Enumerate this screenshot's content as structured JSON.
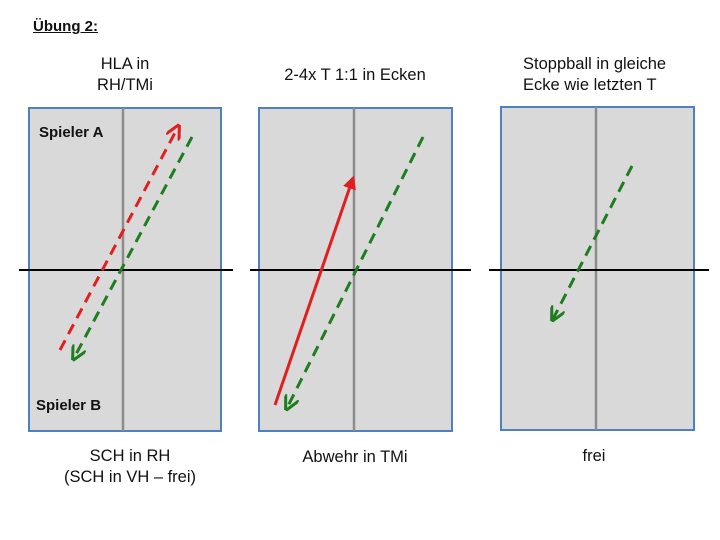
{
  "heading": "Übung 2:",
  "colors": {
    "court_fill": "#d9d9d9",
    "court_border": "#4f81bd",
    "center_line": "#8c8c8c",
    "net": "#000000",
    "player_a_shot": "#e02020",
    "player_b_shot": "#1e7d1e"
  },
  "panels": [
    {
      "title": "HLA in\nRH/TMi",
      "caption": "SCH in RH\n(SCH in VH – frei)",
      "player_a_label": "Spieler A",
      "player_b_label": "Spieler B"
    },
    {
      "title": "2-4x T 1:1 in Ecken",
      "caption": "Abwehr in TMi"
    },
    {
      "title": "Stoppball in gleiche\nEcke wie letzten T",
      "caption": "frei"
    }
  ]
}
